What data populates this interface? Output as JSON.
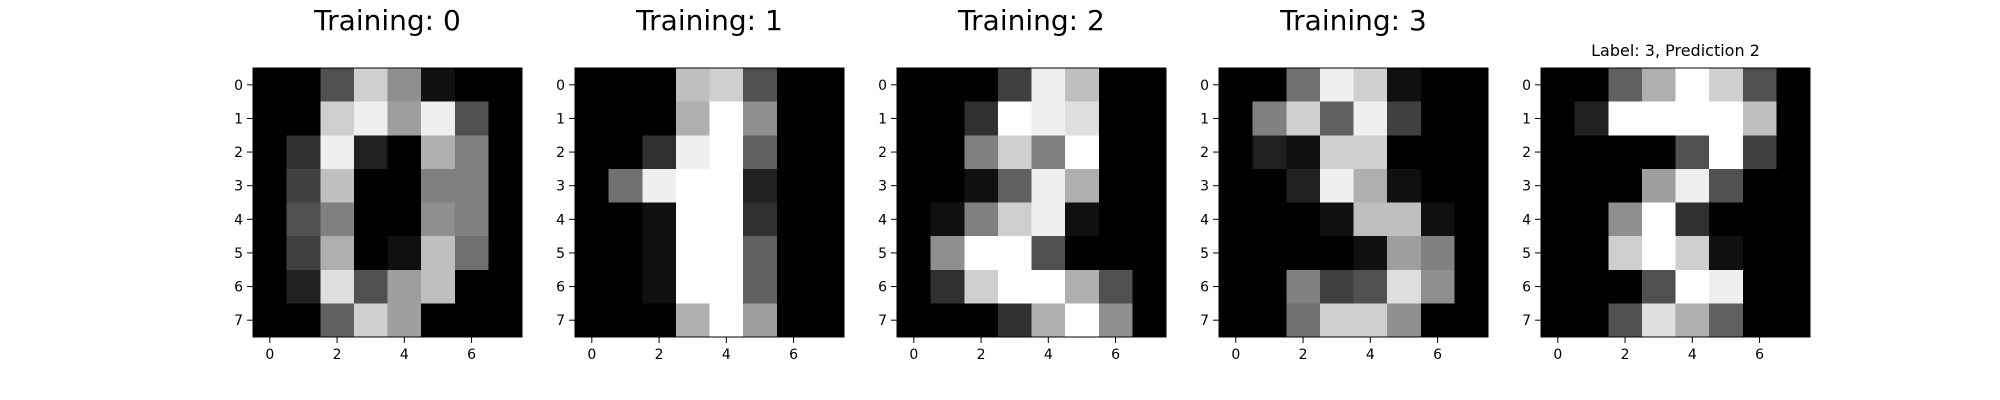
{
  "chart_data": [
    {
      "type": "heatmap",
      "title": "Training: 0",
      "colormap": "gray",
      "vmin": 0,
      "vmax": 16,
      "x_ticks": [
        "0",
        "2",
        "4",
        "6"
      ],
      "y_ticks": [
        "0",
        "1",
        "2",
        "3",
        "4",
        "5",
        "6",
        "7"
      ],
      "values": [
        [
          0,
          0,
          5,
          13,
          9,
          1,
          0,
          0
        ],
        [
          0,
          0,
          13,
          15,
          10,
          15,
          5,
          0
        ],
        [
          0,
          3,
          15,
          2,
          0,
          11,
          8,
          0
        ],
        [
          0,
          4,
          12,
          0,
          0,
          8,
          8,
          0
        ],
        [
          0,
          5,
          8,
          0,
          0,
          9,
          8,
          0
        ],
        [
          0,
          4,
          11,
          0,
          1,
          12,
          7,
          0
        ],
        [
          0,
          2,
          14,
          5,
          10,
          12,
          0,
          0
        ],
        [
          0,
          0,
          6,
          13,
          10,
          0,
          0,
          0
        ]
      ]
    },
    {
      "type": "heatmap",
      "title": "Training: 1",
      "colormap": "gray",
      "vmin": 0,
      "vmax": 16,
      "x_ticks": [
        "0",
        "2",
        "4",
        "6"
      ],
      "y_ticks": [
        "0",
        "1",
        "2",
        "3",
        "4",
        "5",
        "6",
        "7"
      ],
      "values": [
        [
          0,
          0,
          0,
          12,
          13,
          5,
          0,
          0
        ],
        [
          0,
          0,
          0,
          11,
          16,
          9,
          0,
          0
        ],
        [
          0,
          0,
          3,
          15,
          16,
          6,
          0,
          0
        ],
        [
          0,
          7,
          15,
          16,
          16,
          2,
          0,
          0
        ],
        [
          0,
          0,
          1,
          16,
          16,
          3,
          0,
          0
        ],
        [
          0,
          0,
          1,
          16,
          16,
          6,
          0,
          0
        ],
        [
          0,
          0,
          1,
          16,
          16,
          6,
          0,
          0
        ],
        [
          0,
          0,
          0,
          11,
          16,
          10,
          0,
          0
        ]
      ]
    },
    {
      "type": "heatmap",
      "title": "Training: 2",
      "colormap": "gray",
      "vmin": 0,
      "vmax": 16,
      "x_ticks": [
        "0",
        "2",
        "4",
        "6"
      ],
      "y_ticks": [
        "0",
        "1",
        "2",
        "3",
        "4",
        "5",
        "6",
        "7"
      ],
      "values": [
        [
          0,
          0,
          0,
          4,
          15,
          12,
          0,
          0
        ],
        [
          0,
          0,
          3,
          16,
          15,
          14,
          0,
          0
        ],
        [
          0,
          0,
          8,
          13,
          8,
          16,
          0,
          0
        ],
        [
          0,
          0,
          1,
          6,
          15,
          11,
          0,
          0
        ],
        [
          0,
          1,
          8,
          13,
          15,
          1,
          0,
          0
        ],
        [
          0,
          9,
          16,
          16,
          5,
          0,
          0,
          0
        ],
        [
          0,
          3,
          13,
          16,
          16,
          11,
          5,
          0
        ],
        [
          0,
          0,
          0,
          3,
          11,
          16,
          9,
          0
        ]
      ]
    },
    {
      "type": "heatmap",
      "title": "Training: 3",
      "colormap": "gray",
      "vmin": 0,
      "vmax": 16,
      "x_ticks": [
        "0",
        "2",
        "4",
        "6"
      ],
      "y_ticks": [
        "0",
        "1",
        "2",
        "3",
        "4",
        "5",
        "6",
        "7"
      ],
      "values": [
        [
          0,
          0,
          7,
          15,
          13,
          1,
          0,
          0
        ],
        [
          0,
          8,
          13,
          6,
          15,
          4,
          0,
          0
        ],
        [
          0,
          2,
          1,
          13,
          13,
          0,
          0,
          0
        ],
        [
          0,
          0,
          2,
          15,
          11,
          1,
          0,
          0
        ],
        [
          0,
          0,
          0,
          1,
          12,
          12,
          1,
          0
        ],
        [
          0,
          0,
          0,
          0,
          1,
          10,
          8,
          0
        ],
        [
          0,
          0,
          8,
          4,
          5,
          14,
          9,
          0
        ],
        [
          0,
          0,
          7,
          13,
          13,
          9,
          0,
          0
        ]
      ]
    },
    {
      "type": "heatmap",
      "title": "Label: 3, Prediction 2",
      "colormap": "gray",
      "vmin": 0,
      "vmax": 16,
      "x_ticks": [
        "0",
        "2",
        "4",
        "6"
      ],
      "y_ticks": [
        "0",
        "1",
        "2",
        "3",
        "4",
        "5",
        "6",
        "7"
      ],
      "values": [
        [
          0,
          0,
          6,
          11,
          16,
          13,
          5,
          0
        ],
        [
          0,
          2,
          16,
          16,
          16,
          16,
          12,
          0
        ],
        [
          0,
          0,
          0,
          0,
          5,
          16,
          4,
          0
        ],
        [
          0,
          0,
          0,
          10,
          15,
          5,
          0,
          0
        ],
        [
          0,
          0,
          9,
          16,
          3,
          0,
          0,
          0
        ],
        [
          0,
          0,
          13,
          16,
          13,
          1,
          0,
          0
        ],
        [
          0,
          0,
          0,
          5,
          16,
          15,
          0,
          0
        ],
        [
          0,
          0,
          5,
          14,
          11,
          6,
          0,
          0
        ]
      ]
    }
  ]
}
